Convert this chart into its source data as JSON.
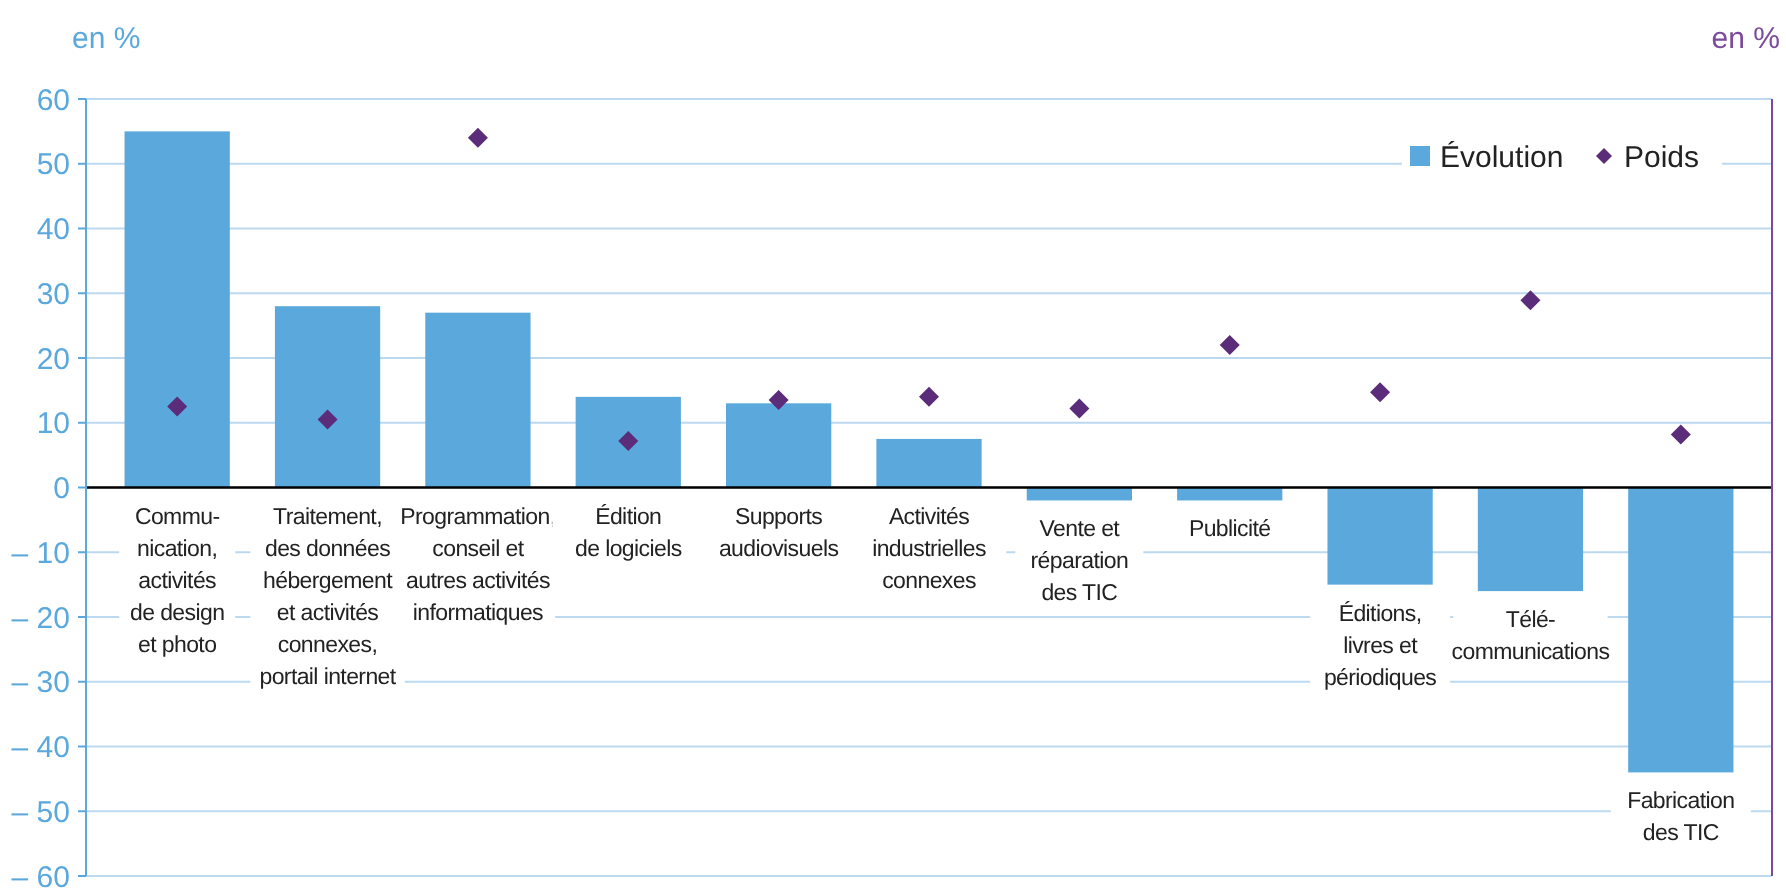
{
  "chart_data": {
    "type": "bar",
    "ylabel": "en %",
    "y2label": "en %",
    "categories": [
      "Commu-\nnication,\nactivités\nde design\net photo",
      "Traitement,\ndes données\nhébergement\net activités\nconnexes,\nportail internet",
      "Programmation,\nconseil et\nautres activités\ninformatiques",
      "Édition\nde logiciels",
      "Supports\naudiovisuels",
      "Activités\nindustrielles\nconnexes",
      "Vente et\nréparation\ndes TIC",
      "Publicité",
      "Éditions,\nlivres et\npériodiques",
      "Télé-\ncommunications",
      "Fabrication\ndes TIC"
    ],
    "series": [
      {
        "name": "Évolution",
        "color": "#5ba8dc",
        "values": [
          55,
          28,
          27,
          14,
          13,
          7.5,
          -2,
          -2,
          -15,
          -16,
          -44
        ]
      },
      {
        "name": "Poids",
        "type": "scatter",
        "color": "#5b2c7a",
        "values": [
          12.5,
          10.5,
          54,
          7.2,
          13.5,
          14,
          12.2,
          22,
          14.7,
          28.9,
          8.2
        ]
      }
    ],
    "ylim": [
      -60,
      60
    ],
    "yticks": [
      {
        "value": -60,
        "label": "– 60"
      },
      {
        "value": -50,
        "label": "– 50"
      },
      {
        "value": -40,
        "label": "– 40"
      },
      {
        "value": -30,
        "label": "– 30"
      },
      {
        "value": -20,
        "label": "– 20"
      },
      {
        "value": -10,
        "label": "– 10"
      },
      0,
      10,
      20,
      30,
      40,
      50,
      60
    ],
    "grid": "y",
    "legend": "top right",
    "marker": "diamond"
  }
}
